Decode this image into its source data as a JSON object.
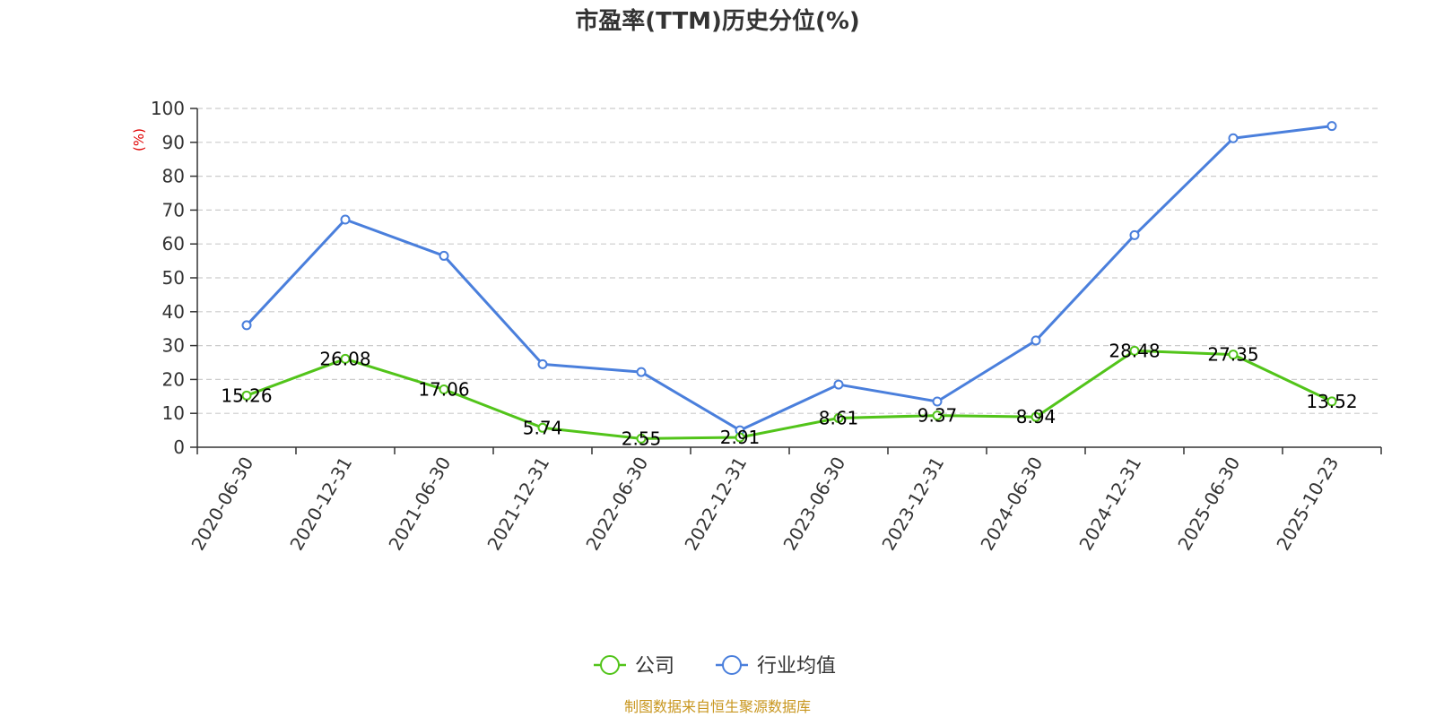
{
  "chart_data": {
    "type": "line",
    "title": "市盈率(TTM)历史分位(%)",
    "ylabel": "(%)",
    "ylim": [
      0,
      100
    ],
    "y_ticks": [
      0,
      10,
      20,
      30,
      40,
      50,
      60,
      70,
      80,
      90,
      100
    ],
    "grid": true,
    "legend_position": "bottom",
    "categories": [
      "2020-06-30",
      "2020-12-31",
      "2021-06-30",
      "2021-12-31",
      "2022-06-30",
      "2022-12-31",
      "2023-06-30",
      "2023-12-31",
      "2024-06-30",
      "2024-12-31",
      "2025-06-30",
      "2025-10-23"
    ],
    "series": [
      {
        "name": "公司",
        "color": "#52c41a",
        "values": [
          15.26,
          26.08,
          17.06,
          5.74,
          2.55,
          2.91,
          8.61,
          9.37,
          8.94,
          28.48,
          27.35,
          13.52
        ],
        "labels": [
          "15.26",
          "26.08",
          "17.06",
          "5.74",
          "2.55",
          "2.91",
          "8.61",
          "9.37",
          "8.94",
          "28.48",
          "27.35",
          "13.52"
        ]
      },
      {
        "name": "行业均值",
        "color": "#4a7fdc",
        "values": [
          36.0,
          67.2,
          56.5,
          24.5,
          22.2,
          5.0,
          18.5,
          13.5,
          31.5,
          62.6,
          91.2,
          94.8
        ]
      }
    ]
  },
  "colors": {
    "axis_unit": "#e00000",
    "source_text": "#c8961e",
    "grid": "#cccccc"
  },
  "source": "制图数据来自恒生聚源数据库"
}
